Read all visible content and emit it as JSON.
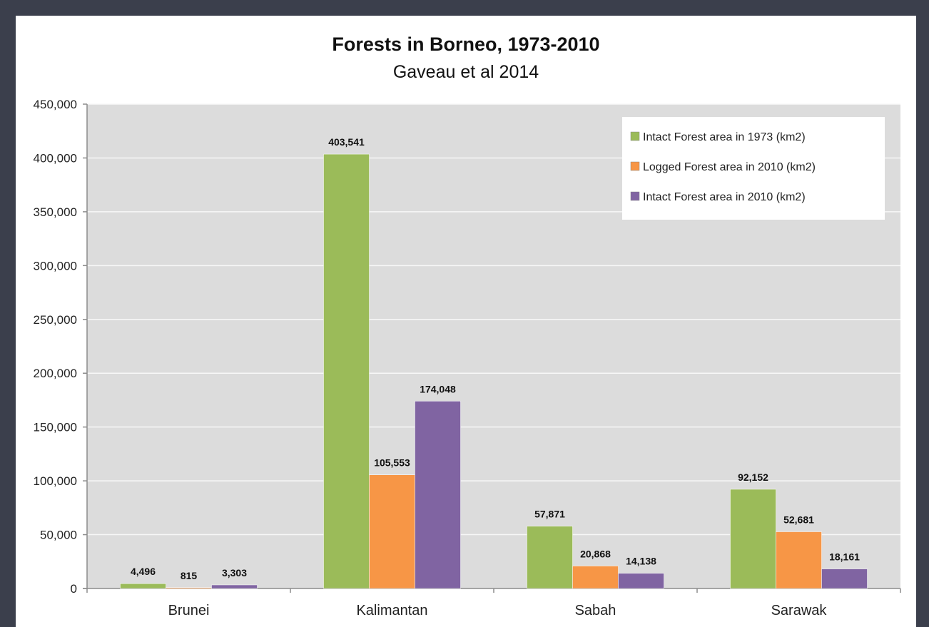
{
  "chart_data": {
    "type": "bar",
    "title": "Forests in Borneo, 1973-2010",
    "subtitle": "Gaveau et al 2014",
    "xlabel": "",
    "ylabel": "",
    "categories": [
      "Brunei",
      "Kalimantan",
      "Sabah",
      "Sarawak"
    ],
    "series": [
      {
        "name": "Intact Forest area in 1973 (km2)",
        "color": "#9bbb59",
        "values": [
          4496,
          403541,
          57871,
          92152
        ],
        "labels": [
          "4,496",
          "403,541",
          "57,871",
          "92,152"
        ]
      },
      {
        "name": "Logged Forest area in 2010 (km2)",
        "color": "#f79646",
        "values": [
          815,
          105553,
          20868,
          52681
        ],
        "labels": [
          "815",
          "105,553",
          "20,868",
          "52,681"
        ]
      },
      {
        "name": "Intact Forest area in 2010 (km2)",
        "color": "#8064a2",
        "values": [
          3303,
          174048,
          14138,
          18161
        ],
        "labels": [
          "3,303",
          "174,048",
          "14,138",
          "18,161"
        ]
      }
    ],
    "ylim": [
      0,
      450000
    ],
    "yticks": [
      0,
      50000,
      100000,
      150000,
      200000,
      250000,
      300000,
      350000,
      400000,
      450000
    ],
    "ytick_labels": [
      "0",
      "50,000",
      "100,000",
      "150,000",
      "200,000",
      "250,000",
      "300,000",
      "350,000",
      "400,000",
      "450,000"
    ],
    "grid": true,
    "legend": "top-right"
  }
}
